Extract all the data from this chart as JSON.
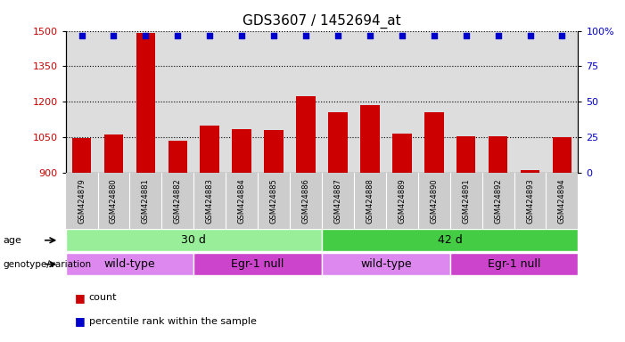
{
  "title": "GDS3607 / 1452694_at",
  "samples": [
    "GSM424879",
    "GSM424880",
    "GSM424881",
    "GSM424882",
    "GSM424883",
    "GSM424884",
    "GSM424885",
    "GSM424886",
    "GSM424887",
    "GSM424888",
    "GSM424889",
    "GSM424890",
    "GSM424891",
    "GSM424892",
    "GSM424893",
    "GSM424894"
  ],
  "counts": [
    1045,
    1063,
    1490,
    1035,
    1100,
    1085,
    1080,
    1225,
    1155,
    1185,
    1065,
    1155,
    1055,
    1055,
    910,
    1050
  ],
  "ylim_left": [
    900,
    1500
  ],
  "ylim_right": [
    0,
    100
  ],
  "yticks_left": [
    900,
    1050,
    1200,
    1350,
    1500
  ],
  "yticks_right": [
    0,
    25,
    50,
    75,
    100
  ],
  "bar_color": "#cc0000",
  "dot_color": "#0000cc",
  "bar_width": 0.6,
  "age_groups": [
    {
      "label": "30 d",
      "start": 0,
      "end": 8,
      "color": "#99ee99"
    },
    {
      "label": "42 d",
      "start": 8,
      "end": 16,
      "color": "#44cc44"
    }
  ],
  "genotype_groups": [
    {
      "label": "wild-type",
      "start": 0,
      "end": 4,
      "color": "#dd88ee"
    },
    {
      "label": "Egr-1 null",
      "start": 4,
      "end": 8,
      "color": "#cc44cc"
    },
    {
      "label": "wild-type",
      "start": 8,
      "end": 12,
      "color": "#dd88ee"
    },
    {
      "label": "Egr-1 null",
      "start": 12,
      "end": 16,
      "color": "#cc44cc"
    }
  ],
  "legend_count_label": "count",
  "legend_pct_label": "percentile rank within the sample",
  "age_label": "age",
  "genotype_label": "genotype/variation",
  "title_fontsize": 11,
  "tick_label_color_left": "#cc0000",
  "axis_label_color_right": "#0000cc",
  "dotted_grid_color": "#000000",
  "background_color": "#ffffff",
  "plot_bg_color": "#dddddd",
  "xtick_bg_color": "#cccccc"
}
